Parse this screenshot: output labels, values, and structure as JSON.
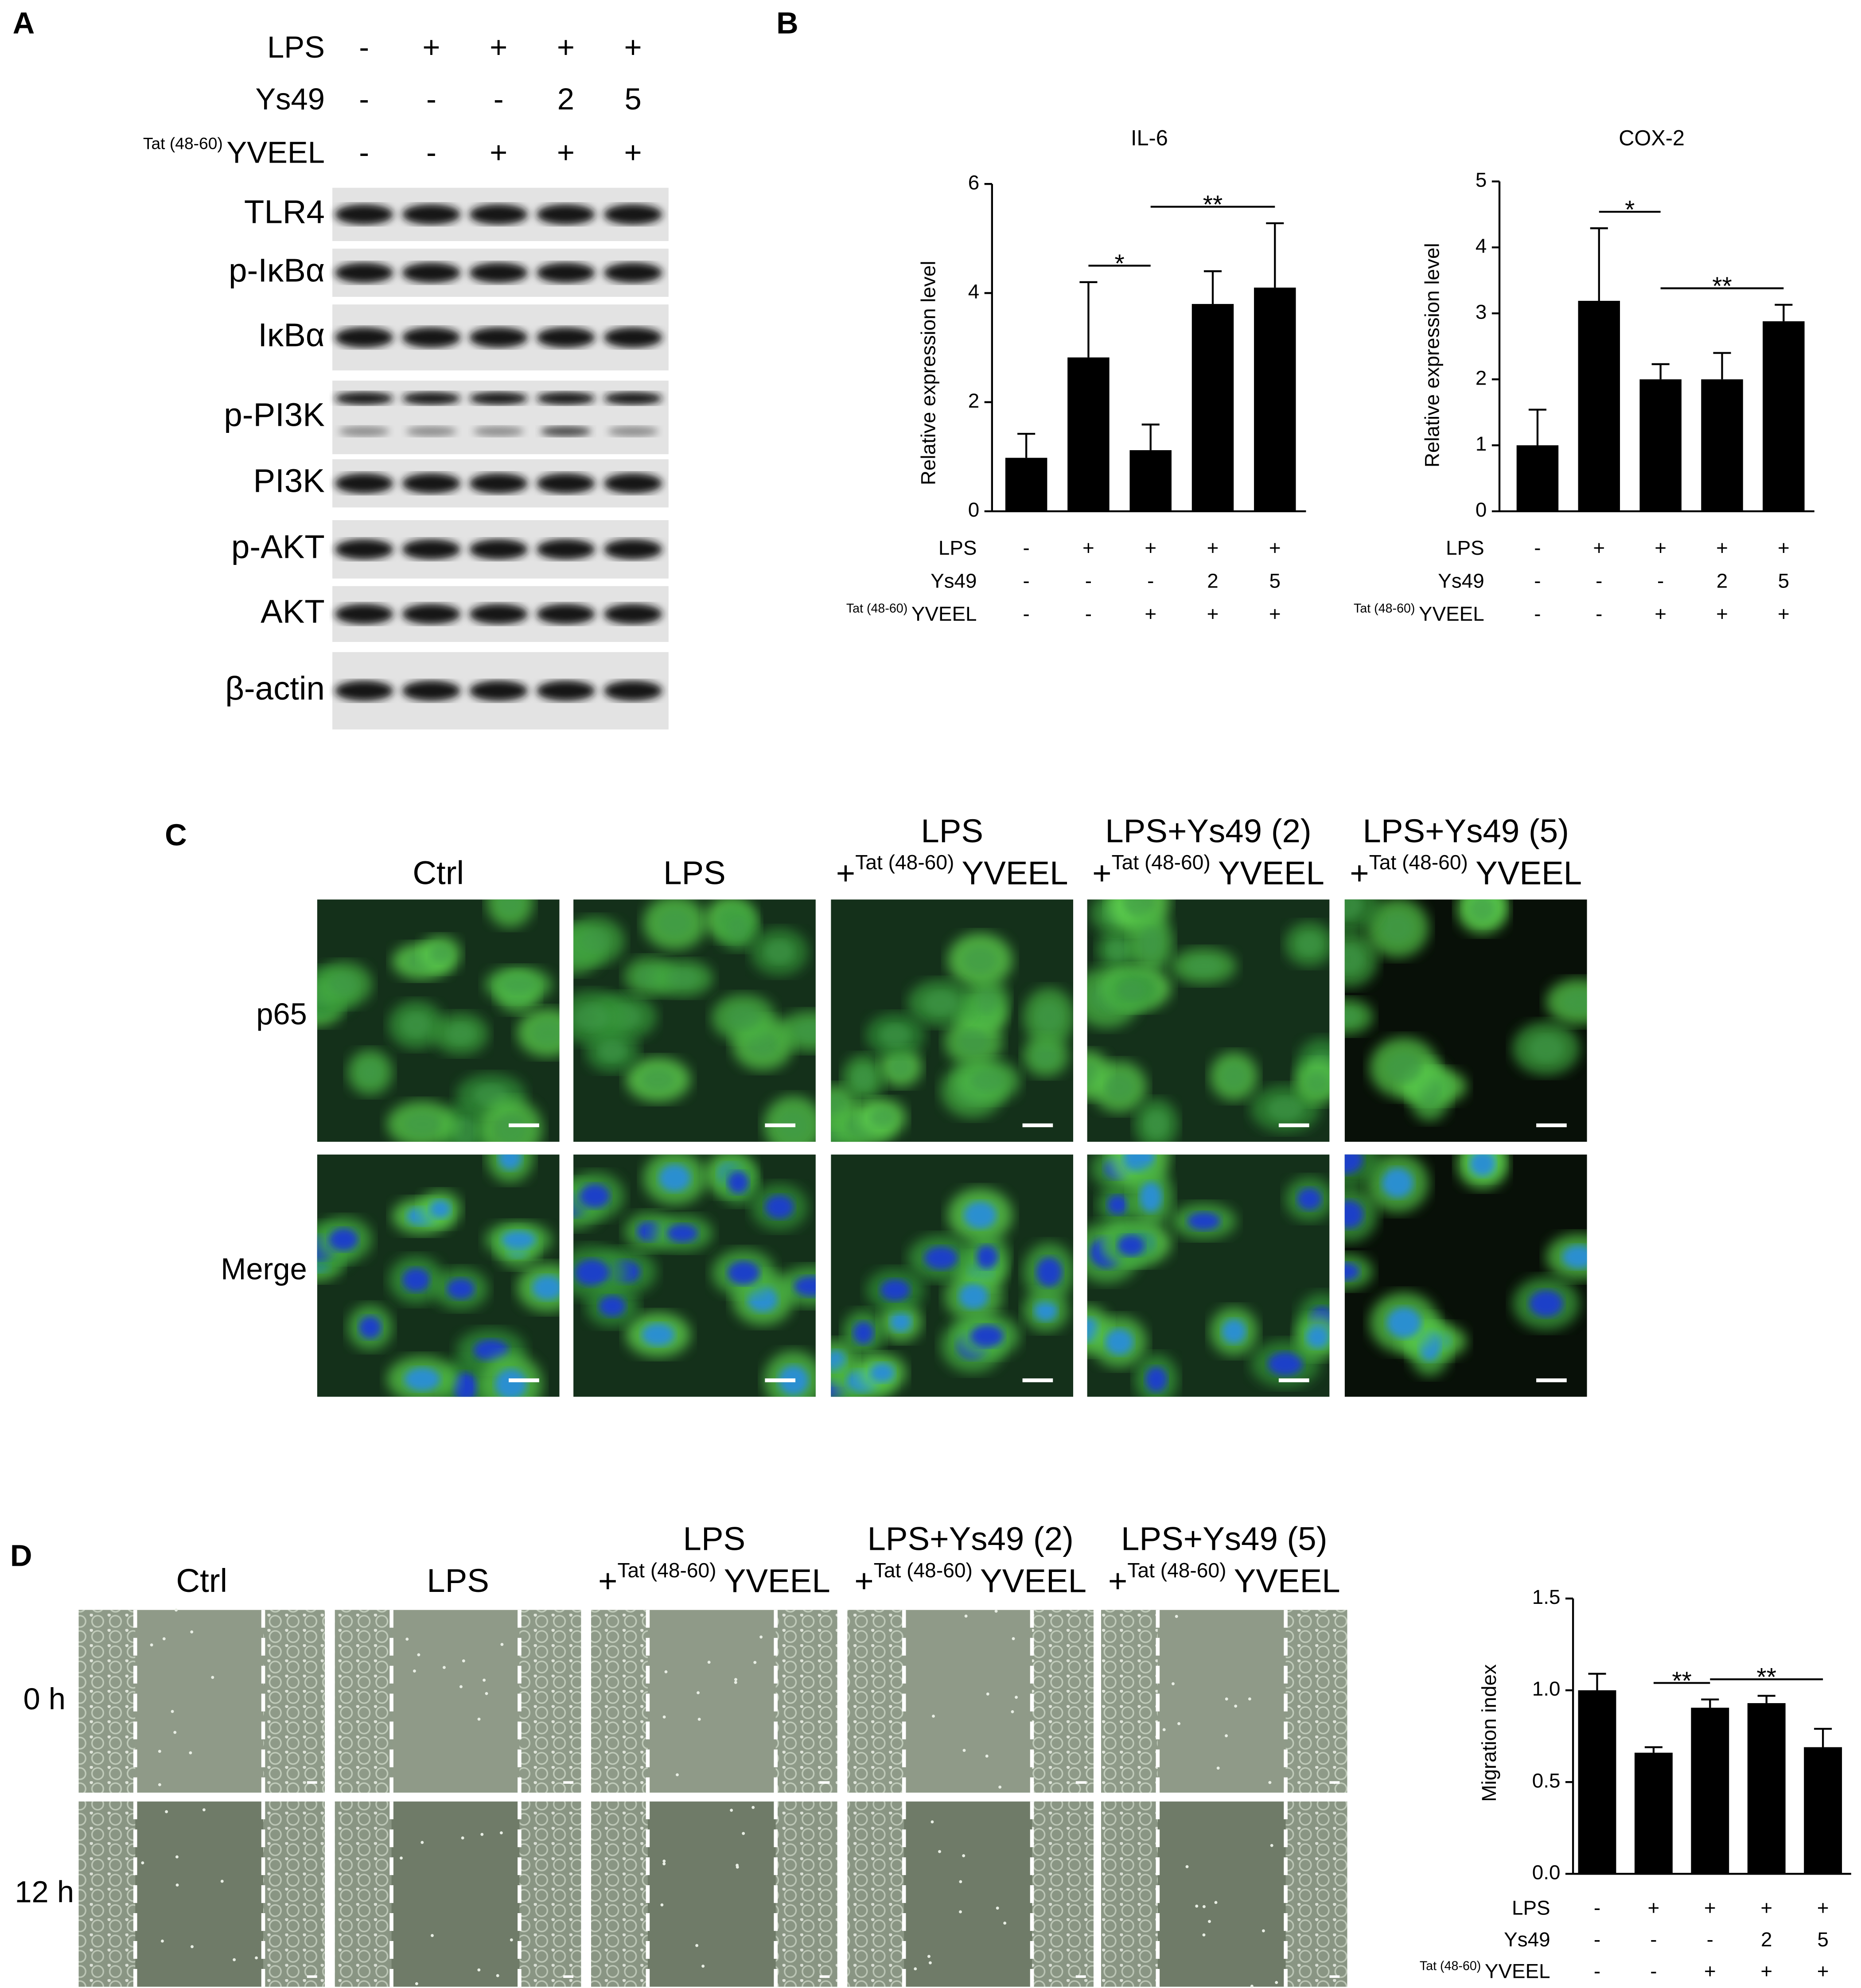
{
  "panel_labels": [
    "A",
    "B",
    "C",
    "D"
  ],
  "treatments": [
    {
      "name": "LPS",
      "levels": [
        "-",
        "+",
        "+",
        "+",
        "+"
      ]
    },
    {
      "name": "Ys49",
      "levels": [
        "-",
        "-",
        "-",
        "2",
        "5"
      ]
    },
    {
      "prefix": "Tat (48-60)",
      "name": "YVEEL",
      "levels": [
        "-",
        "-",
        "+",
        "+",
        "+"
      ]
    }
  ],
  "western_blot": {
    "proteins": [
      "TLR4",
      "p-IκBα",
      "IκBα",
      "p-PI3K",
      "PI3K",
      "p-AKT",
      "AKT",
      "β-actin"
    ]
  },
  "conditions": [
    {
      "title": "Ctrl"
    },
    {
      "title": "LPS"
    },
    {
      "title": "LPS",
      "plus": "+",
      "prefix": "Tat (48-60)",
      "peptide": "YVEEL"
    },
    {
      "title": "LPS+Ys49 (2)",
      "plus": "+",
      "prefix": "Tat (48-60)",
      "peptide": "YVEEL"
    },
    {
      "title": "LPS+Ys49 (5)",
      "plus": "+",
      "prefix": "Tat (48-60)",
      "peptide": "YVEEL"
    }
  ],
  "immunofluorescence": {
    "rows": [
      "p65",
      "Merge"
    ]
  },
  "scratch_assay": {
    "rows": [
      "0 h",
      "12 h"
    ]
  },
  "chart_data": [
    {
      "type": "bar",
      "title": "IL-6",
      "y_label": "Relative expression level",
      "values": [
        0.98,
        2.82,
        1.12,
        3.8,
        4.1
      ],
      "errors": [
        0.44,
        1.38,
        0.47,
        0.6,
        1.18
      ],
      "color": "#000000",
      "ylim": [
        0,
        6
      ],
      "yticks": [
        0,
        2,
        4,
        6
      ],
      "annotations": [
        {
          "text": "*",
          "from": 1,
          "to": 2
        },
        {
          "text": "**",
          "from": 2,
          "to": 4
        }
      ]
    },
    {
      "type": "bar",
      "title": "COX-2",
      "y_label": "Relative expression level",
      "values": [
        1.0,
        3.19,
        2.0,
        2.0,
        2.88
      ],
      "errors": [
        0.54,
        1.1,
        0.23,
        0.4,
        0.25
      ],
      "color": "#000000",
      "ylim": [
        0,
        5
      ],
      "yticks": [
        0,
        1,
        2,
        3,
        4,
        5
      ],
      "annotations": [
        {
          "text": "*",
          "from": 1,
          "to": 2
        },
        {
          "text": "**",
          "from": 2,
          "to": 4
        }
      ]
    },
    {
      "type": "bar",
      "y_label": "Migration index",
      "values": [
        1.0,
        0.66,
        0.905,
        0.93,
        0.69
      ],
      "errors": [
        0.09,
        0.03,
        0.045,
        0.04,
        0.1
      ],
      "color": "#000000",
      "ylim": [
        0,
        1.5
      ],
      "yticks": [
        {
          "value": 0,
          "label": "0.0"
        },
        0.5,
        {
          "value": 1,
          "label": "1.0"
        },
        1.5
      ],
      "annotations": [
        {
          "text": "**",
          "from": 1,
          "to": 2
        },
        {
          "text": "**",
          "from": 2,
          "to": 4
        }
      ]
    }
  ]
}
